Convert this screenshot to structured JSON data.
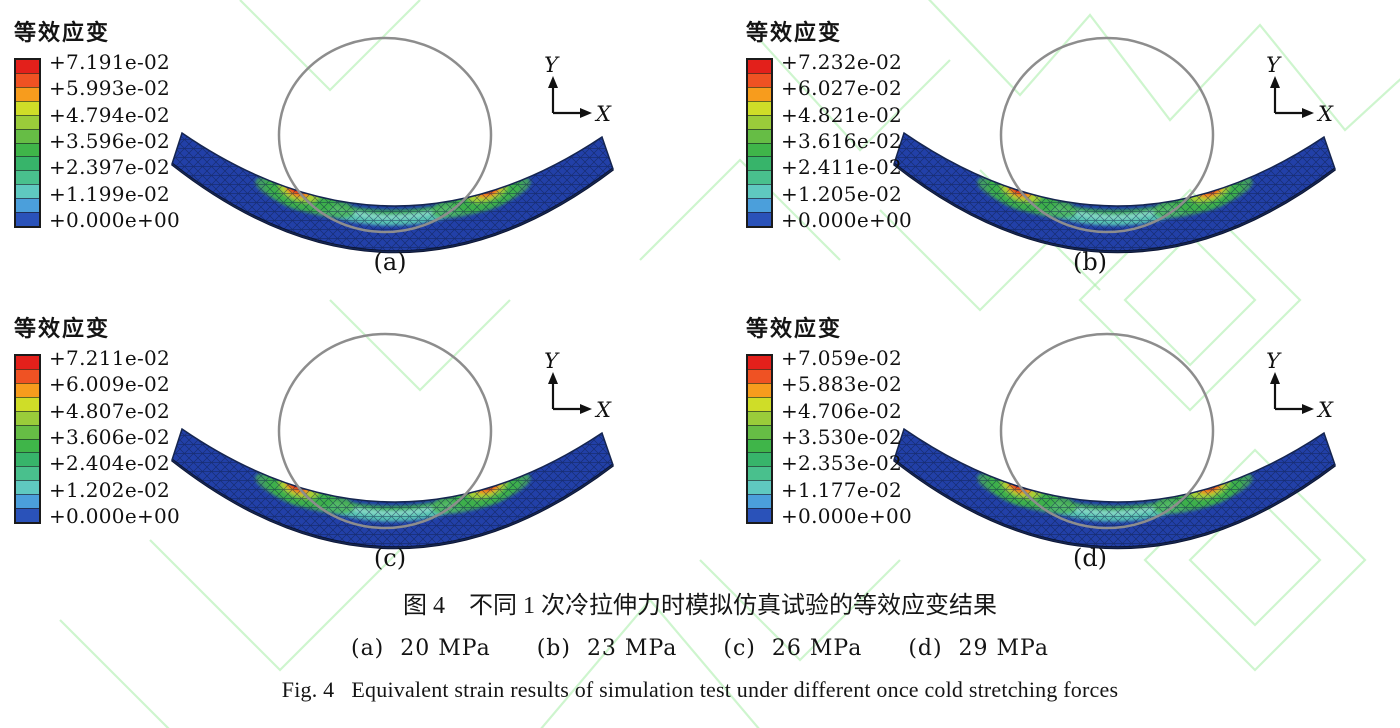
{
  "figure": {
    "type": "FEM equivalent-strain contour figure, 2x2 panels"
  },
  "captions": {
    "chinese": "图 4　不同 1 次冷拉伸力时模拟仿真试验的等效应变结果",
    "sub_labels": [
      "(a)  20 MPa",
      "(b)  23 MPa",
      "(c)  26 MPa",
      "(d)  29 MPa"
    ],
    "english": "Fig. 4   Equivalent strain results of simulation test under different once cold stretching forces"
  },
  "panels": [
    {
      "letter": "(a)",
      "legend_title": "等效应变",
      "axis_x": "X",
      "axis_y": "Y",
      "values": [
        "+7.191e-02",
        "+5.993e-02",
        "+4.794e-02",
        "+3.596e-02",
        "+2.397e-02",
        "+1.199e-02",
        "+0.000e+00"
      ]
    },
    {
      "letter": "(b)",
      "legend_title": "等效应变",
      "axis_x": "X",
      "axis_y": "Y",
      "values": [
        "+7.232e-02",
        "+6.027e-02",
        "+4.821e-02",
        "+3.616e-02",
        "+2.411e-02",
        "+1.205e-02",
        "+0.000e+00"
      ]
    },
    {
      "letter": "(c)",
      "legend_title": "等效应变",
      "axis_x": "X",
      "axis_y": "Y",
      "values": [
        "+7.211e-02",
        "+6.009e-02",
        "+4.807e-02",
        "+3.606e-02",
        "+2.404e-02",
        "+1.202e-02",
        "+0.000e+00"
      ]
    },
    {
      "letter": "(d)",
      "legend_title": "等效应变",
      "axis_x": "X",
      "axis_y": "Y",
      "values": [
        "+7.059e-02",
        "+5.883e-02",
        "+4.706e-02",
        "+3.530e-02",
        "+2.353e-02",
        "+1.177e-02",
        "+0.000e+00"
      ]
    }
  ],
  "colors": {
    "colorbar": [
      "#e3201b",
      "#ef5223",
      "#f79c1d",
      "#cfdd28",
      "#9acc3a",
      "#66bd45",
      "#3fb549",
      "#37b46a",
      "#49c08d",
      "#5fc9c0",
      "#4b9fdb",
      "#2a52b9"
    ],
    "beam_base": "#2240a8",
    "strain_band_teal": "#58c4b4",
    "strain_band_green": "#3cab4e",
    "hotspot_red": "#dd1f1a",
    "hotspot_orange": "#f5871f",
    "die_outline_gray": "#8d8d8d",
    "watermark_green": "#a5eda5"
  }
}
